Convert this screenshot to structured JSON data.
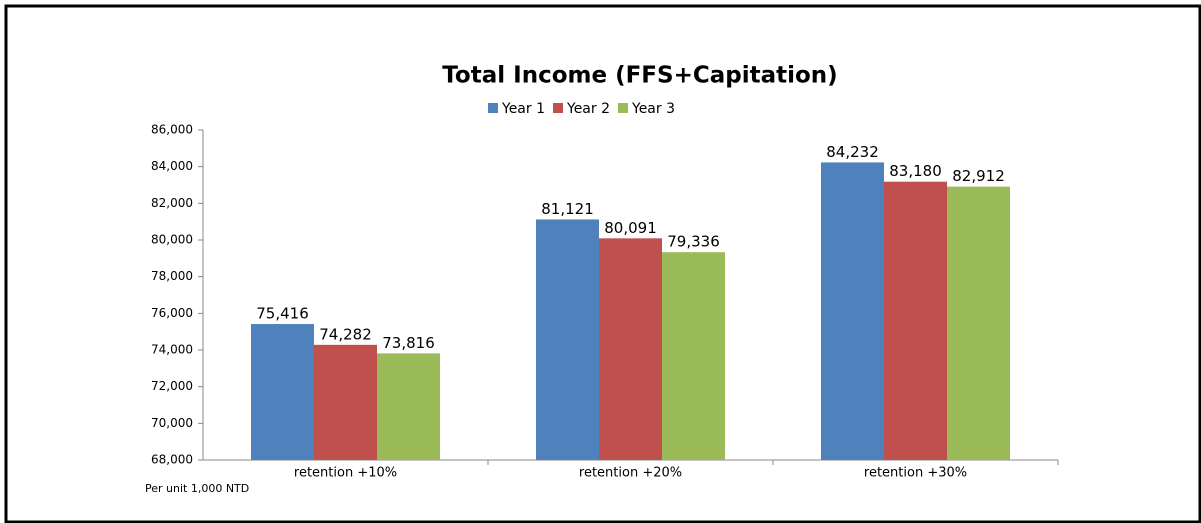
{
  "chart_data": {
    "type": "bar",
    "title": "Total Income (FFS+Capitation)",
    "note": "Per unit 1,000 NTD",
    "categories": [
      "retention +10%",
      "retention +20%",
      "retention +30%"
    ],
    "series": [
      {
        "name": "Year 1",
        "color": "#4f81bd",
        "values": [
          75416,
          81121,
          84232
        ],
        "value_labels": [
          "75,416",
          "81,121",
          "84,232"
        ]
      },
      {
        "name": "Year 2",
        "color": "#c0504d",
        "values": [
          74282,
          80091,
          83180
        ],
        "value_labels": [
          "74,282",
          "80,091",
          "83,180"
        ]
      },
      {
        "name": "Year 3",
        "color": "#9bbb59",
        "values": [
          73816,
          79336,
          82912
        ],
        "value_labels": [
          "73,816",
          "79,336",
          "82,912"
        ]
      }
    ],
    "ylim": [
      68000,
      86000
    ],
    "yticks": [
      {
        "value": 68000,
        "label": "68,000"
      },
      {
        "value": 70000,
        "label": "70,000"
      },
      {
        "value": 72000,
        "label": "72,000"
      },
      {
        "value": 74000,
        "label": "74,000"
      },
      {
        "value": 76000,
        "label": "76,000"
      },
      {
        "value": 78000,
        "label": "78,000"
      },
      {
        "value": 80000,
        "label": "80,000"
      },
      {
        "value": 82000,
        "label": "82,000"
      },
      {
        "value": 84000,
        "label": "84,000"
      },
      {
        "value": 86000,
        "label": "86,000"
      }
    ],
    "legend": "top"
  }
}
